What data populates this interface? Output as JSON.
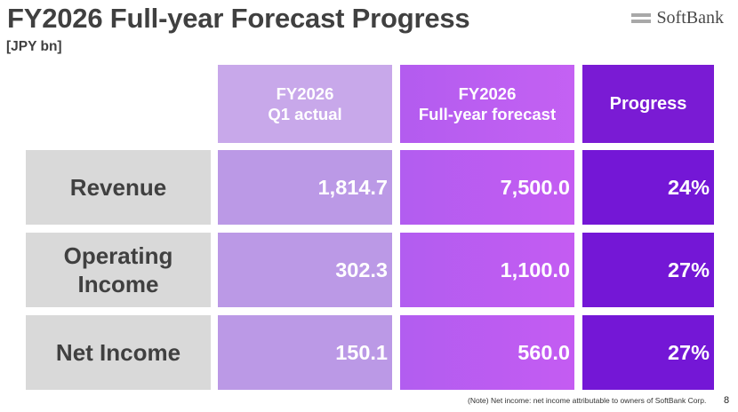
{
  "header": {
    "title": "FY2026 Full-year Forecast Progress",
    "unit": "[JPY bn]"
  },
  "logo": {
    "text": "SoftBank",
    "icon": "softbank-bars-icon"
  },
  "table": {
    "columns": [
      {
        "line1": "FY2026",
        "line2": "Q1 actual"
      },
      {
        "line1": "FY2026",
        "line2": "Full-year forecast"
      },
      {
        "line1": "Progress",
        "line2": ""
      }
    ],
    "rows": [
      {
        "label_line1": "Revenue",
        "label_line2": "",
        "q1_actual": "1,814.7",
        "forecast": "7,500.0",
        "progress": "24%"
      },
      {
        "label_line1": "Operating",
        "label_line2": "Income",
        "q1_actual": "302.3",
        "forecast": "1,100.0",
        "progress": "27%"
      },
      {
        "label_line1": "Net Income",
        "label_line2": "",
        "q1_actual": "150.1",
        "forecast": "560.0",
        "progress": "27%"
      }
    ]
  },
  "footer": {
    "note": "(Note) Net income: net income attributable to owners of SoftBank Corp.",
    "page_number": "8"
  },
  "colors": {
    "q1_column": "#bb99e6",
    "forecast_column": "#c45cf2",
    "progress_column": "#7417d6",
    "row_label_bg": "#d9d9d9",
    "title_text": "#404040"
  }
}
